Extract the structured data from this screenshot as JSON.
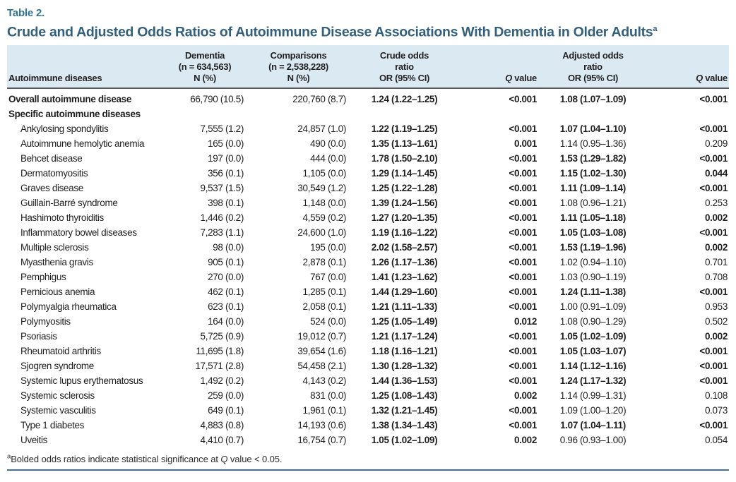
{
  "table_label": "Table 2.",
  "title": "Crude and Adjusted Odds Ratios of Autoimmune Disease Associations With Dementia in Older Adults",
  "title_sup": "a",
  "header": {
    "col_disease": "Autoimmune diseases",
    "dementia_lines": [
      "Dementia",
      "(n = 634,563)",
      "N (%)"
    ],
    "comparisons_lines": [
      "Comparisons",
      "(n = 2,538,228)",
      "N (%)"
    ],
    "crude_lines": [
      "Crude odds",
      "ratio",
      "OR (95% CI)"
    ],
    "adjusted_lines": [
      "Adjusted odds",
      "ratio",
      "OR (95% CI)"
    ],
    "q_italic": "Q",
    "q_rest": " value"
  },
  "rows": [
    {
      "label": "Overall autoimmune disease",
      "bold": true,
      "indent": false,
      "dementia": "66,790 (10.5)",
      "comparisons": "220,760 (8.7)",
      "crude_or": "1.24 (1.22–1.25)",
      "crude_q": "<0.001",
      "adj_or": "1.08 (1.07–1.09)",
      "adj_q": "<0.001",
      "adj_bold": true
    },
    {
      "label": "Specific autoimmune diseases",
      "bold": true,
      "indent": false,
      "dementia": "",
      "comparisons": "",
      "crude_or": "",
      "crude_q": "",
      "adj_or": "",
      "adj_q": "",
      "adj_bold": false
    },
    {
      "label": "Ankylosing spondylitis",
      "bold": false,
      "indent": true,
      "dementia": "7,555 (1.2)",
      "comparisons": "24,857 (1.0)",
      "crude_or": "1.22 (1.19–1.25)",
      "crude_q": "<0.001",
      "adj_or": "1.07 (1.04–1.10)",
      "adj_q": "<0.001",
      "adj_bold": true
    },
    {
      "label": "Autoimmune hemolytic anemia",
      "bold": false,
      "indent": true,
      "dementia": "165 (0.0)",
      "comparisons": "490 (0.0)",
      "crude_or": "1.35 (1.13–1.61)",
      "crude_q": "0.001",
      "adj_or": "1.14 (0.95–1.36)",
      "adj_q": "0.209",
      "adj_bold": false
    },
    {
      "label": "Behcet disease",
      "bold": false,
      "indent": true,
      "dementia": "197 (0.0)",
      "comparisons": "444 (0.0)",
      "crude_or": "1.78 (1.50–2.10)",
      "crude_q": "<0.001",
      "adj_or": "1.53 (1.29–1.82)",
      "adj_q": "<0.001",
      "adj_bold": true
    },
    {
      "label": "Dermatomyositis",
      "bold": false,
      "indent": true,
      "dementia": "356 (0.1)",
      "comparisons": "1,105 (0.0)",
      "crude_or": "1.29 (1.14–1.45)",
      "crude_q": "<0.001",
      "adj_or": "1.15 (1.02–1.30)",
      "adj_q": "0.044",
      "adj_bold": true
    },
    {
      "label": "Graves disease",
      "bold": false,
      "indent": true,
      "dementia": "9,537 (1.5)",
      "comparisons": "30,549 (1.2)",
      "crude_or": "1.25 (1.22–1.28)",
      "crude_q": "<0.001",
      "adj_or": "1.11 (1.09–1.14)",
      "adj_q": "<0.001",
      "adj_bold": true
    },
    {
      "label": "Guillain-Barré syndrome",
      "bold": false,
      "indent": true,
      "dementia": "398 (0.1)",
      "comparisons": "1,148 (0.0)",
      "crude_or": "1.39 (1.24–1.56)",
      "crude_q": "<0.001",
      "adj_or": "1.08 (0.96–1.21)",
      "adj_q": "0.253",
      "adj_bold": false
    },
    {
      "label": "Hashimoto thyroiditis",
      "bold": false,
      "indent": true,
      "dementia": "1,446 (0.2)",
      "comparisons": "4,559 (0.2)",
      "crude_or": "1.27 (1.20–1.35)",
      "crude_q": "<0.001",
      "adj_or": "1.11 (1.05–1.18)",
      "adj_q": "0.002",
      "adj_bold": true
    },
    {
      "label": "Inflammatory bowel diseases",
      "bold": false,
      "indent": true,
      "dementia": "7,283 (1.1)",
      "comparisons": "24,600 (1.0)",
      "crude_or": "1.19 (1.16–1.22)",
      "crude_q": "<0.001",
      "adj_or": "1.05 (1.03–1.08)",
      "adj_q": "<0.001",
      "adj_bold": true
    },
    {
      "label": "Multiple sclerosis",
      "bold": false,
      "indent": true,
      "dementia": "98 (0.0)",
      "comparisons": "195 (0.0)",
      "crude_or": "2.02 (1.58–2.57)",
      "crude_q": "<0.001",
      "adj_or": "1.53 (1.19–1.96)",
      "adj_q": "0.002",
      "adj_bold": true
    },
    {
      "label": "Myasthenia gravis",
      "bold": false,
      "indent": true,
      "dementia": "905 (0.1)",
      "comparisons": "2,878 (0.1)",
      "crude_or": "1.26 (1.17–1.36)",
      "crude_q": "<0.001",
      "adj_or": "1.02 (0.94–1.10)",
      "adj_q": "0.701",
      "adj_bold": false
    },
    {
      "label": "Pemphigus",
      "bold": false,
      "indent": true,
      "dementia": "270 (0.0)",
      "comparisons": "767 (0.0)",
      "crude_or": "1.41 (1.23–1.62)",
      "crude_q": "<0.001",
      "adj_or": "1.03 (0.90–1.19)",
      "adj_q": "0.708",
      "adj_bold": false
    },
    {
      "label": "Pernicious anemia",
      "bold": false,
      "indent": true,
      "dementia": "462 (0.1)",
      "comparisons": "1,285 (0.1)",
      "crude_or": "1.44 (1.29–1.60)",
      "crude_q": "<0.001",
      "adj_or": "1.24 (1.11–1.38)",
      "adj_q": "<0.001",
      "adj_bold": true
    },
    {
      "label": "Polymyalgia rheumatica",
      "bold": false,
      "indent": true,
      "dementia": "623 (0.1)",
      "comparisons": "2,058 (0.1)",
      "crude_or": "1.21 (1.11–1.33)",
      "crude_q": "<0.001",
      "adj_or": "1.00 (0.91–1.09)",
      "adj_q": "0.953",
      "adj_bold": false
    },
    {
      "label": "Polymyositis",
      "bold": false,
      "indent": true,
      "dementia": "164 (0.0)",
      "comparisons": "524 (0.0)",
      "crude_or": "1.25 (1.05–1.49)",
      "crude_q": "0.012",
      "adj_or": "1.08 (0.90–1.29)",
      "adj_q": "0.502",
      "adj_bold": false
    },
    {
      "label": "Psoriasis",
      "bold": false,
      "indent": true,
      "dementia": "5,725 (0.9)",
      "comparisons": "19,012 (0.7)",
      "crude_or": "1.21 (1.17–1.24)",
      "crude_q": "<0.001",
      "adj_or": "1.05 (1.02–1.09)",
      "adj_q": "0.002",
      "adj_bold": true
    },
    {
      "label": "Rheumatoid arthritis",
      "bold": false,
      "indent": true,
      "dementia": "11,695 (1.8)",
      "comparisons": "39,654 (1.6)",
      "crude_or": "1.18 (1.16–1.21)",
      "crude_q": "<0.001",
      "adj_or": "1.05 (1.03–1.07)",
      "adj_q": "<0.001",
      "adj_bold": true
    },
    {
      "label": "Sjogren syndrome",
      "bold": false,
      "indent": true,
      "dementia": "17,571 (2.8)",
      "comparisons": "54,458 (2.1)",
      "crude_or": "1.30 (1.28–1.32)",
      "crude_q": "<0.001",
      "adj_or": "1.14 (1.12–1.16)",
      "adj_q": "<0.001",
      "adj_bold": true
    },
    {
      "label": "Systemic lupus erythematosus",
      "bold": false,
      "indent": true,
      "dementia": "1,492 (0.2)",
      "comparisons": "4,143 (0.2)",
      "crude_or": "1.44 (1.36–1.53)",
      "crude_q": "<0.001",
      "adj_or": "1.24 (1.17–1.32)",
      "adj_q": "<0.001",
      "adj_bold": true
    },
    {
      "label": "Systemic sclerosis",
      "bold": false,
      "indent": true,
      "dementia": "259 (0.0)",
      "comparisons": "831 (0.0)",
      "crude_or": "1.25 (1.08–1.43)",
      "crude_q": "0.002",
      "adj_or": "1.14 (0.99–1.31)",
      "adj_q": "0.108",
      "adj_bold": false
    },
    {
      "label": "Systemic vasculitis",
      "bold": false,
      "indent": true,
      "dementia": "649 (0.1)",
      "comparisons": "1,961 (0.1)",
      "crude_or": "1.32 (1.21–1.45)",
      "crude_q": "<0.001",
      "adj_or": "1.09 (1.00–1.20)",
      "adj_q": "0.073",
      "adj_bold": false
    },
    {
      "label": "Type 1 diabetes",
      "bold": false,
      "indent": true,
      "dementia": "4,883 (0.8)",
      "comparisons": "14,193 (0.6)",
      "crude_or": "1.38 (1.34–1.43)",
      "crude_q": "<0.001",
      "adj_or": "1.07 (1.04–1.11)",
      "adj_q": "<0.001",
      "adj_bold": true
    },
    {
      "label": "Uveitis",
      "bold": false,
      "indent": true,
      "dementia": "4,410 (0.7)",
      "comparisons": "16,754 (0.7)",
      "crude_or": "1.05 (1.02–1.09)",
      "crude_q": "0.002",
      "adj_or": "0.96 (0.93–1.00)",
      "adj_q": "0.054",
      "adj_bold": false
    }
  ],
  "footnote": {
    "sup": "a",
    "text1": "Bolded odds ratios indicate statistical significance at ",
    "q": "Q",
    "text2": " value < 0.05."
  },
  "colors": {
    "label_teal": "#2e7492",
    "title_slate": "#33607d",
    "header_band": "#dbe9f3",
    "header_rule": "#55565a",
    "bottom_rule": "#44719b"
  }
}
